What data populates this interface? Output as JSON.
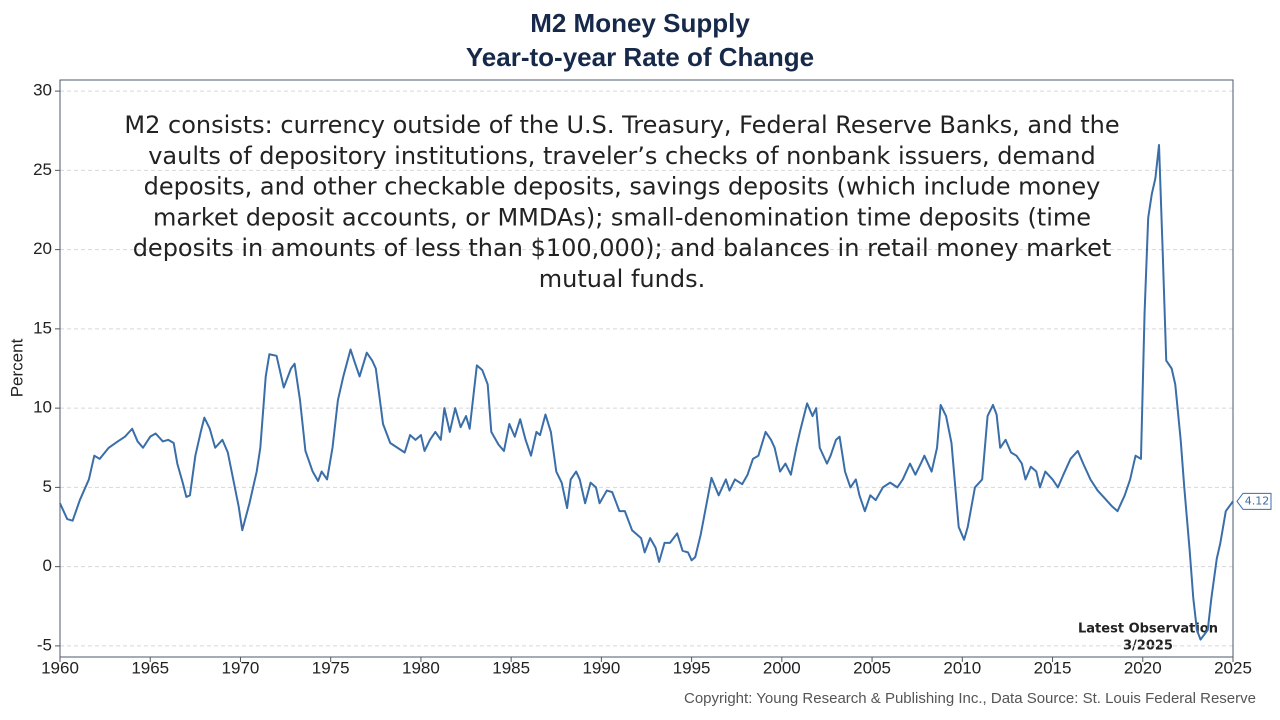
{
  "chart_data": {
    "type": "line",
    "title_lines": [
      "M2 Money Supply",
      "Year-to-year Rate of Change"
    ],
    "ylabel": "Percent",
    "annotation_lines": [
      "M2 consists: currency outside of the U.S. Treasury, Federal Reserve Banks, and the",
      "vaults of depository institutions, traveler’s checks of nonbank issuers, demand",
      "deposits, and other checkable deposits, savings deposits (which include money",
      "market deposit accounts, or MMDAs); small-denomination time deposits (time",
      "deposits in amounts of less than $100,000); and balances in retail money market",
      "mutual funds."
    ],
    "latest_note": [
      "Latest Observation",
      "3/2025"
    ],
    "source": "Copyright: Young Research & Publishing Inc., Data Source: St. Louis Federal Reserve",
    "color": "#3a6ea8",
    "grid": true,
    "xlim": [
      1960,
      2025
    ],
    "ylim": [
      -5.7,
      30.7
    ],
    "xticks": [
      1960,
      1965,
      1970,
      1975,
      1980,
      1985,
      1990,
      1995,
      2000,
      2005,
      2010,
      2015,
      2020,
      2025
    ],
    "yticks": [
      -5,
      0,
      5,
      10,
      15,
      20,
      25,
      30
    ],
    "x": [
      1960.0,
      1960.4,
      1960.7,
      1961.1,
      1961.6,
      1961.9,
      1962.2,
      1962.7,
      1963.2,
      1963.6,
      1964.0,
      1964.3,
      1964.6,
      1965.0,
      1965.3,
      1965.7,
      1966.0,
      1966.3,
      1966.5,
      1966.8,
      1967.0,
      1967.2,
      1967.5,
      1967.8,
      1968.0,
      1968.3,
      1968.6,
      1969.0,
      1969.3,
      1969.6,
      1969.9,
      1970.1,
      1970.5,
      1970.9,
      1971.1,
      1971.4,
      1971.6,
      1972.0,
      1972.4,
      1972.8,
      1973.0,
      1973.3,
      1973.6,
      1974.0,
      1974.3,
      1974.5,
      1974.8,
      1975.1,
      1975.4,
      1975.7,
      1976.1,
      1976.3,
      1976.6,
      1977.0,
      1977.3,
      1977.5,
      1977.9,
      1978.3,
      1978.7,
      1979.1,
      1979.4,
      1979.7,
      1980.0,
      1980.2,
      1980.5,
      1980.8,
      1981.1,
      1981.3,
      1981.6,
      1981.9,
      1982.2,
      1982.5,
      1982.7,
      1983.1,
      1983.4,
      1983.7,
      1983.9,
      1984.3,
      1984.6,
      1984.9,
      1985.2,
      1985.5,
      1985.8,
      1986.1,
      1986.4,
      1986.6,
      1986.9,
      1987.2,
      1987.5,
      1987.8,
      1988.1,
      1988.3,
      1988.6,
      1988.8,
      1989.1,
      1989.4,
      1989.7,
      1989.9,
      1990.3,
      1990.6,
      1991.0,
      1991.3,
      1991.7,
      1992.2,
      1992.4,
      1992.7,
      1993.0,
      1993.2,
      1993.5,
      1993.8,
      1994.2,
      1994.5,
      1994.8,
      1995.0,
      1995.2,
      1995.5,
      1995.8,
      1996.1,
      1996.5,
      1996.9,
      1997.1,
      1997.4,
      1997.8,
      1998.1,
      1998.4,
      1998.7,
      1999.1,
      1999.4,
      1999.6,
      1999.9,
      2000.2,
      2000.5,
      2000.8,
      2001.0,
      2001.4,
      2001.7,
      2001.9,
      2002.1,
      2002.5,
      2002.7,
      2003.0,
      2003.2,
      2003.5,
      2003.8,
      2004.1,
      2004.3,
      2004.6,
      2004.9,
      2005.2,
      2005.6,
      2006.0,
      2006.4,
      2006.7,
      2007.1,
      2007.4,
      2007.7,
      2007.9,
      2008.3,
      2008.6,
      2008.8,
      2009.1,
      2009.4,
      2009.8,
      2010.1,
      2010.3,
      2010.7,
      2011.1,
      2011.4,
      2011.7,
      2011.9,
      2012.1,
      2012.4,
      2012.7,
      2013.0,
      2013.3,
      2013.5,
      2013.8,
      2014.1,
      2014.3,
      2014.6,
      2015.0,
      2015.3,
      2015.6,
      2016.0,
      2016.4,
      2016.7,
      2017.1,
      2017.5,
      2017.9,
      2018.3,
      2018.6,
      2019.0,
      2019.3,
      2019.6,
      2019.9,
      2020.1,
      2020.3,
      2020.5,
      2020.7,
      2020.9,
      2021.1,
      2021.3,
      2021.6,
      2021.8,
      2022.1,
      2022.3,
      2022.6,
      2022.8,
      2023.0,
      2023.2,
      2023.6,
      2023.8,
      2024.1,
      2024.3,
      2024.6,
      2025.0
    ],
    "values": [
      4.0,
      3.0,
      2.9,
      4.2,
      5.5,
      7.0,
      6.8,
      7.5,
      7.9,
      8.2,
      8.7,
      7.9,
      7.5,
      8.2,
      8.4,
      7.9,
      8.0,
      7.8,
      6.5,
      5.3,
      4.4,
      4.5,
      7.0,
      8.5,
      9.4,
      8.7,
      7.5,
      8.0,
      7.2,
      5.5,
      3.8,
      2.3,
      4.0,
      6.0,
      7.5,
      12.0,
      13.4,
      13.3,
      11.3,
      12.5,
      12.8,
      10.5,
      7.3,
      6.0,
      5.4,
      6.0,
      5.5,
      7.5,
      10.5,
      12.0,
      13.7,
      13.0,
      12.0,
      13.5,
      13.0,
      12.5,
      9.0,
      7.8,
      7.5,
      7.2,
      8.3,
      8.0,
      8.3,
      7.3,
      8.0,
      8.5,
      8.0,
      10.0,
      8.5,
      10.0,
      8.8,
      9.5,
      8.7,
      12.7,
      12.4,
      11.5,
      8.5,
      7.7,
      7.3,
      9.0,
      8.2,
      9.3,
      8.0,
      7.0,
      8.5,
      8.3,
      9.6,
      8.5,
      6.0,
      5.3,
      3.7,
      5.5,
      6.0,
      5.5,
      4.0,
      5.3,
      5.0,
      4.0,
      4.8,
      4.7,
      3.5,
      3.5,
      2.3,
      1.8,
      0.9,
      1.8,
      1.2,
      0.3,
      1.5,
      1.5,
      2.1,
      1.0,
      0.9,
      0.4,
      0.6,
      2.0,
      3.8,
      5.6,
      4.5,
      5.5,
      4.8,
      5.5,
      5.2,
      5.8,
      6.8,
      7.0,
      8.5,
      8.0,
      7.5,
      6.0,
      6.5,
      5.8,
      7.5,
      8.5,
      10.3,
      9.5,
      10.0,
      7.5,
      6.5,
      7.0,
      8.0,
      8.2,
      6.0,
      5.0,
      5.5,
      4.5,
      3.5,
      4.5,
      4.2,
      5.0,
      5.3,
      5.0,
      5.5,
      6.5,
      5.8,
      6.5,
      7.0,
      6.0,
      7.5,
      10.2,
      9.5,
      7.8,
      2.5,
      1.7,
      2.5,
      5.0,
      5.5,
      9.5,
      10.2,
      9.6,
      7.5,
      8.0,
      7.2,
      7.0,
      6.5,
      5.5,
      6.3,
      6.0,
      5.0,
      6.0,
      5.5,
      5.0,
      5.8,
      6.8,
      7.3,
      6.5,
      5.5,
      4.8,
      4.3,
      3.8,
      3.5,
      4.5,
      5.5,
      7.0,
      6.8,
      16.0,
      22.0,
      23.5,
      24.5,
      26.6,
      20.0,
      13.0,
      12.5,
      11.5,
      8.0,
      5.0,
      1.0,
      -2.0,
      -4.0,
      -4.6,
      -4.0,
      -2.0,
      0.5,
      1.5,
      3.5,
      4.12
    ]
  }
}
